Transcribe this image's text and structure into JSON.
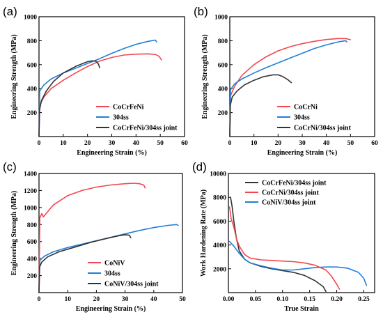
{
  "colors": {
    "red": "#f2474f",
    "blue": "#1f7fd6",
    "black": "#333333"
  },
  "chart_data": [
    {
      "panel": "(a)",
      "type": "line",
      "xlabel": "Engineering Strain (%)",
      "ylabel": "Engineering Strength (MPa)",
      "xlim": [
        0,
        60
      ],
      "ylim": [
        0,
        1000
      ],
      "xticks": [
        0,
        10,
        20,
        30,
        40,
        50,
        60
      ],
      "yticks": [
        200,
        400,
        600,
        800,
        1000
      ],
      "legend_position": "bottom-right",
      "series": [
        {
          "name": "CoCrFeNi",
          "color": "red",
          "points": [
            [
              0,
              0
            ],
            [
              0.3,
              260
            ],
            [
              2,
              330
            ],
            [
              5,
              400
            ],
            [
              10,
              470
            ],
            [
              15,
              530
            ],
            [
              20,
              585
            ],
            [
              25,
              630
            ],
            [
              30,
              660
            ],
            [
              35,
              680
            ],
            [
              40,
              688
            ],
            [
              45,
              690
            ],
            [
              48,
              685
            ],
            [
              49.5,
              670
            ],
            [
              50.5,
              640
            ]
          ]
        },
        {
          "name": "304ss",
          "color": "blue",
          "points": [
            [
              0,
              0
            ],
            [
              0.3,
              380
            ],
            [
              2,
              430
            ],
            [
              5,
              480
            ],
            [
              10,
              530
            ],
            [
              15,
              570
            ],
            [
              20,
              610
            ],
            [
              25,
              650
            ],
            [
              30,
              695
            ],
            [
              35,
              735
            ],
            [
              40,
              770
            ],
            [
              45,
              795
            ],
            [
              48,
              805
            ],
            [
              48.5,
              790
            ]
          ]
        },
        {
          "name": "CoCrFeNi/304ss joint",
          "color": "black",
          "points": [
            [
              0,
              0
            ],
            [
              0.2,
              220
            ],
            [
              1,
              300
            ],
            [
              3,
              380
            ],
            [
              6,
              460
            ],
            [
              10,
              530
            ],
            [
              15,
              585
            ],
            [
              20,
              625
            ],
            [
              22,
              632
            ],
            [
              23.5,
              628
            ],
            [
              24.5,
              605
            ],
            [
              25,
              575
            ]
          ]
        }
      ]
    },
    {
      "panel": "(b)",
      "type": "line",
      "xlabel": "Engineering Strain (%)",
      "ylabel": "Engineering Strength (MPa)",
      "xlim": [
        0,
        60
      ],
      "ylim": [
        0,
        1000
      ],
      "xticks": [
        0,
        10,
        20,
        30,
        40,
        50,
        60
      ],
      "yticks": [
        200,
        400,
        600,
        800,
        1000
      ],
      "legend_position": "bottom-right",
      "series": [
        {
          "name": "CoCrNi",
          "color": "red",
          "points": [
            [
              0,
              0
            ],
            [
              0.3,
              340
            ],
            [
              2,
              420
            ],
            [
              5,
              510
            ],
            [
              10,
              600
            ],
            [
              15,
              665
            ],
            [
              20,
              715
            ],
            [
              25,
              750
            ],
            [
              30,
              775
            ],
            [
              35,
              795
            ],
            [
              40,
              810
            ],
            [
              45,
              818
            ],
            [
              48,
              818
            ],
            [
              50,
              808
            ]
          ]
        },
        {
          "name": "304ss",
          "color": "blue",
          "points": [
            [
              0,
              0
            ],
            [
              0.3,
              390
            ],
            [
              2,
              440
            ],
            [
              5,
              480
            ],
            [
              10,
              530
            ],
            [
              15,
              575
            ],
            [
              20,
              615
            ],
            [
              25,
              655
            ],
            [
              30,
              695
            ],
            [
              35,
              735
            ],
            [
              40,
              765
            ],
            [
              45,
              790
            ],
            [
              48,
              800
            ],
            [
              48.5,
              790
            ]
          ]
        },
        {
          "name": "CoCrNi/304ss joint",
          "color": "black",
          "points": [
            [
              0,
              0
            ],
            [
              0.2,
              260
            ],
            [
              1,
              330
            ],
            [
              3,
              380
            ],
            [
              6,
              430
            ],
            [
              10,
              470
            ],
            [
              14,
              500
            ],
            [
              18,
              515
            ],
            [
              20,
              515
            ],
            [
              22,
              500
            ],
            [
              24,
              475
            ],
            [
              25.5,
              450
            ]
          ]
        }
      ]
    },
    {
      "panel": "(c)",
      "type": "line",
      "xlabel": "Engineering Strain (%)",
      "ylabel": "Engineering Strength (MPa)",
      "xlim": [
        0,
        50
      ],
      "ylim": [
        0,
        1400
      ],
      "xticks": [
        0,
        10,
        20,
        30,
        40,
        50
      ],
      "yticks": [
        200,
        400,
        600,
        800,
        1000,
        1200,
        1400
      ],
      "legend_position": "bottom-right",
      "series": [
        {
          "name": "CoNiV",
          "color": "red",
          "points": [
            [
              0,
              0
            ],
            [
              0.3,
              880
            ],
            [
              1,
              930
            ],
            [
              1.5,
              890
            ],
            [
              2.5,
              930
            ],
            [
              5,
              1030
            ],
            [
              10,
              1140
            ],
            [
              15,
              1200
            ],
            [
              20,
              1240
            ],
            [
              25,
              1265
            ],
            [
              30,
              1280
            ],
            [
              33,
              1285
            ],
            [
              35,
              1280
            ],
            [
              36.5,
              1265
            ],
            [
              37,
              1230
            ]
          ]
        },
        {
          "name": "304ss",
          "color": "blue",
          "points": [
            [
              0,
              0
            ],
            [
              0.3,
              380
            ],
            [
              2,
              430
            ],
            [
              5,
              480
            ],
            [
              10,
              530
            ],
            [
              15,
              570
            ],
            [
              20,
              610
            ],
            [
              25,
              650
            ],
            [
              30,
              690
            ],
            [
              35,
              730
            ],
            [
              40,
              765
            ],
            [
              45,
              790
            ],
            [
              48,
              800
            ],
            [
              48.5,
              790
            ]
          ]
        },
        {
          "name": "CoNiV/304ss joint",
          "color": "black",
          "points": [
            [
              0,
              0
            ],
            [
              0.2,
              300
            ],
            [
              1,
              360
            ],
            [
              3,
              420
            ],
            [
              7,
              480
            ],
            [
              12,
              530
            ],
            [
              18,
              590
            ],
            [
              24,
              640
            ],
            [
              28,
              670
            ],
            [
              30,
              680
            ],
            [
              31.5,
              675
            ],
            [
              32,
              645
            ]
          ]
        }
      ]
    },
    {
      "panel": "(d)",
      "type": "line",
      "xlabel": "True Strain",
      "ylabel": "Work Hardening Rate (MPa)",
      "xlim": [
        0,
        0.27
      ],
      "ylim": [
        0,
        10000
      ],
      "xticks": [
        0.0,
        0.05,
        0.1,
        0.15,
        0.2,
        0.25
      ],
      "xtick_labels": [
        "0.00",
        "0.05",
        "0.10",
        "0.15",
        "0.20",
        "0.25"
      ],
      "yticks": [
        2000,
        4000,
        6000,
        8000,
        10000
      ],
      "legend_position": "top-right",
      "series": [
        {
          "name": "CoCrFeNi/304ss joint",
          "color": "black",
          "points": [
            [
              0.004,
              8000
            ],
            [
              0.007,
              7200
            ],
            [
              0.01,
              6000
            ],
            [
              0.015,
              4500
            ],
            [
              0.02,
              3500
            ],
            [
              0.03,
              2800
            ],
            [
              0.04,
              2500
            ],
            [
              0.06,
              2200
            ],
            [
              0.08,
              2000
            ],
            [
              0.1,
              1850
            ],
            [
              0.12,
              1700
            ],
            [
              0.14,
              1450
            ],
            [
              0.16,
              1000
            ],
            [
              0.175,
              500
            ],
            [
              0.18,
              100
            ]
          ]
        },
        {
          "name": "CoCrNi/304ss joint",
          "color": "red",
          "points": [
            [
              0.002,
              7200
            ],
            [
              0.005,
              6200
            ],
            [
              0.01,
              5500
            ],
            [
              0.015,
              4500
            ],
            [
              0.02,
              3900
            ],
            [
              0.03,
              3200
            ],
            [
              0.04,
              2900
            ],
            [
              0.06,
              2750
            ],
            [
              0.08,
              2700
            ],
            [
              0.1,
              2650
            ],
            [
              0.12,
              2600
            ],
            [
              0.14,
              2500
            ],
            [
              0.16,
              2300
            ],
            [
              0.18,
              1900
            ],
            [
              0.19,
              1400
            ],
            [
              0.2,
              700
            ],
            [
              0.205,
              300
            ]
          ]
        },
        {
          "name": "CoNiV/304ss joint",
          "color": "blue",
          "points": [
            [
              0.002,
              4300
            ],
            [
              0.01,
              3900
            ],
            [
              0.02,
              3300
            ],
            [
              0.03,
              2800
            ],
            [
              0.04,
              2500
            ],
            [
              0.06,
              2250
            ],
            [
              0.08,
              2050
            ],
            [
              0.1,
              1900
            ],
            [
              0.12,
              1900
            ],
            [
              0.14,
              2000
            ],
            [
              0.16,
              2100
            ],
            [
              0.18,
              2150
            ],
            [
              0.2,
              2150
            ],
            [
              0.22,
              2050
            ],
            [
              0.24,
              1700
            ],
            [
              0.25,
              1200
            ],
            [
              0.255,
              600
            ]
          ]
        }
      ]
    }
  ]
}
